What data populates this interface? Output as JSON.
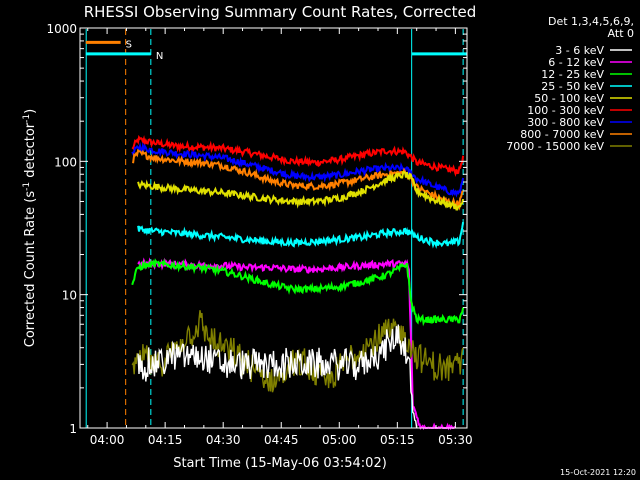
{
  "chart_data": {
    "type": "line",
    "title": "RHESSI Observing Summary Count Rates, Corrected",
    "xlabel": "Start Time (15-May-06 03:54:02)",
    "ylabel_prefix": "Corrected Count Rate (s",
    "ylabel_sup1": "-1",
    "ylabel_mid": " detector",
    "ylabel_sup2": "-1",
    "ylabel_suffix": ")",
    "yscale": "log",
    "xlim_min": [
      233,
      333
    ],
    "ylim": [
      1,
      1000
    ],
    "xticks": [
      {
        "min": 240,
        "label": "04:00"
      },
      {
        "min": 255,
        "label": "04:15"
      },
      {
        "min": 270,
        "label": "04:30"
      },
      {
        "min": 285,
        "label": "04:45"
      },
      {
        "min": 300,
        "label": "05:00"
      },
      {
        "min": 315,
        "label": "05:15"
      },
      {
        "min": 330,
        "label": "05:30"
      }
    ],
    "yticks": [
      {
        "value": 1,
        "label": "1"
      },
      {
        "value": 10,
        "label": "10"
      },
      {
        "value": 100,
        "label": "100"
      },
      {
        "value": 1000,
        "label": "1000"
      }
    ],
    "legend": {
      "header_line1": "Det 1,3,4,5,6,9,",
      "header_line2": "Att 0",
      "position": "right",
      "entries": [
        {
          "label": "3 - 6 keV",
          "color": "#ffffff"
        },
        {
          "label": "6 - 12 keV",
          "color": "#ff00ff"
        },
        {
          "label": "12 - 25 keV",
          "color": "#00ff00"
        },
        {
          "label": "25 - 50 keV",
          "color": "#00ffff"
        },
        {
          "label": "50 - 100 keV",
          "color": "#e0e000"
        },
        {
          "label": "100 - 300 keV",
          "color": "#ff0000"
        },
        {
          "label": "300 - 800 keV",
          "color": "#0000ff"
        },
        {
          "label": "800 - 7000 keV",
          "color": "#ff8000"
        },
        {
          "label": "7000 - 15000 keV",
          "color": "#808000"
        }
      ]
    },
    "flag_bars": [
      {
        "label": "S",
        "color": "#ff8000",
        "start_min": 234.5,
        "end_min": 243.5,
        "value": 780
      },
      {
        "label": "N",
        "color": "#00ffff",
        "start_min": 234.5,
        "end_min": 251.3,
        "value": 640
      },
      {
        "label": "",
        "color": "#00ffff",
        "start_min": 318.7,
        "end_min": 333,
        "value": 640
      }
    ],
    "vlines": [
      {
        "min": 244.8,
        "color": "#ff8000",
        "style": "dashed"
      },
      {
        "min": 251.3,
        "color": "#00ffff",
        "style": "dashed"
      },
      {
        "min": 234.6,
        "color": "#00ffff",
        "style": "solid"
      },
      {
        "min": 318.7,
        "color": "#00ffff",
        "style": "solid"
      },
      {
        "min": 332.0,
        "color": "#00ffff",
        "style": "dashed"
      }
    ],
    "series": [
      {
        "name": "100 - 300 keV",
        "color": "#ff0000",
        "x": [
          246.5,
          248,
          252,
          258,
          264,
          270,
          276,
          282,
          288,
          294,
          300,
          306,
          312,
          317,
          318.5,
          320,
          324,
          328,
          331,
          332
        ],
        "y": [
          125,
          145,
          138,
          130,
          128,
          125,
          117,
          108,
          100,
          98,
          103,
          112,
          120,
          118,
          108,
          98,
          92,
          87,
          85,
          110
        ]
      },
      {
        "name": "300 - 800 keV",
        "color": "#0000ff",
        "x": [
          246.5,
          248,
          252,
          258,
          264,
          270,
          276,
          282,
          288,
          294,
          300,
          306,
          312,
          317,
          318.5,
          320,
          324,
          328,
          331,
          332
        ],
        "y": [
          112,
          128,
          121,
          115,
          111,
          106,
          96,
          86,
          78,
          76,
          79,
          85,
          89,
          88,
          82,
          74,
          66,
          60,
          57,
          75
        ]
      },
      {
        "name": "800 - 7000 keV",
        "color": "#ff8000",
        "x": [
          246.5,
          248,
          252,
          258,
          264,
          270,
          276,
          282,
          288,
          294,
          300,
          306,
          312,
          317,
          318.5,
          320,
          324,
          328,
          331,
          332
        ],
        "y": [
          102,
          115,
          107,
          101,
          98,
          93,
          83,
          72,
          66,
          65,
          68,
          74,
          80,
          82,
          75,
          64,
          56,
          50,
          48,
          60
        ]
      },
      {
        "name": "50 - 100 keV",
        "color": "#e0e000",
        "x": [
          248,
          252,
          258,
          264,
          270,
          276,
          282,
          288,
          294,
          300,
          306,
          312,
          317,
          318.5,
          320,
          324,
          328,
          331,
          332
        ],
        "y": [
          67,
          65,
          62,
          60,
          58,
          55,
          52,
          50,
          50,
          53,
          60,
          72,
          80,
          75,
          60,
          52,
          48,
          45,
          52
        ]
      },
      {
        "name": "25 - 50 keV",
        "color": "#00ffff",
        "x": [
          248,
          252,
          258,
          264,
          270,
          276,
          282,
          288,
          294,
          300,
          306,
          312,
          317,
          318.5,
          320,
          324,
          328,
          331,
          332
        ],
        "y": [
          31,
          30,
          29,
          28,
          27,
          26,
          25,
          24.5,
          25,
          26,
          27,
          29,
          30,
          29,
          27,
          25,
          24,
          25,
          35
        ]
      },
      {
        "name": "6 - 12 keV",
        "color": "#ff00ff",
        "x": [
          248,
          252,
          258,
          264,
          270,
          276,
          282,
          288,
          294,
          300,
          306,
          312,
          316,
          317.5,
          318,
          319,
          321,
          330
        ],
        "y": [
          17,
          17,
          17,
          16.5,
          16.5,
          16,
          16,
          15.5,
          15.5,
          16,
          16.5,
          17,
          17,
          17,
          15,
          1.5,
          1,
          1
        ]
      },
      {
        "name": "12 - 25 keV",
        "color": "#00ff00",
        "x": [
          246.5,
          248,
          252,
          258,
          264,
          270,
          276,
          282,
          288,
          294,
          300,
          306,
          312,
          316,
          317.5,
          318.5,
          320,
          324,
          328,
          331,
          332
        ],
        "y": [
          12,
          16,
          17,
          16.5,
          16,
          15,
          13.5,
          12,
          11,
          11,
          11.5,
          12.5,
          14,
          16,
          17,
          9,
          6.5,
          6.5,
          6.5,
          6.5,
          8
        ]
      },
      {
        "name": "7000 - 15000 keV",
        "color": "#808000",
        "x": [
          246.5,
          248,
          250,
          252,
          255,
          258,
          261,
          264,
          267,
          270,
          273,
          276,
          279,
          282,
          285,
          288,
          291,
          294,
          297,
          300,
          303,
          306,
          309,
          312,
          315,
          318,
          320,
          323,
          326,
          329,
          331,
          332
        ],
        "y": [
          2.5,
          3,
          3.5,
          2.8,
          3.2,
          4,
          5,
          6,
          4.5,
          4,
          3.5,
          3,
          2.5,
          2.2,
          2.5,
          3,
          3,
          2.5,
          2.2,
          2.8,
          3.5,
          4,
          4.5,
          5,
          5.5,
          4.5,
          3.5,
          3,
          2.8,
          2.8,
          3,
          4
        ]
      },
      {
        "name": "3 - 6 keV",
        "color": "#ffffff",
        "x": [
          248,
          252,
          258,
          264,
          270,
          276,
          282,
          288,
          294,
          300,
          306,
          312,
          315,
          318,
          319,
          320
        ],
        "y": [
          3,
          3,
          3.5,
          3.5,
          3,
          3,
          3,
          3,
          3,
          3,
          3,
          4,
          5,
          3.5,
          1.2,
          1
        ]
      }
    ]
  },
  "timestamp": "15-Oct-2021 12:20"
}
